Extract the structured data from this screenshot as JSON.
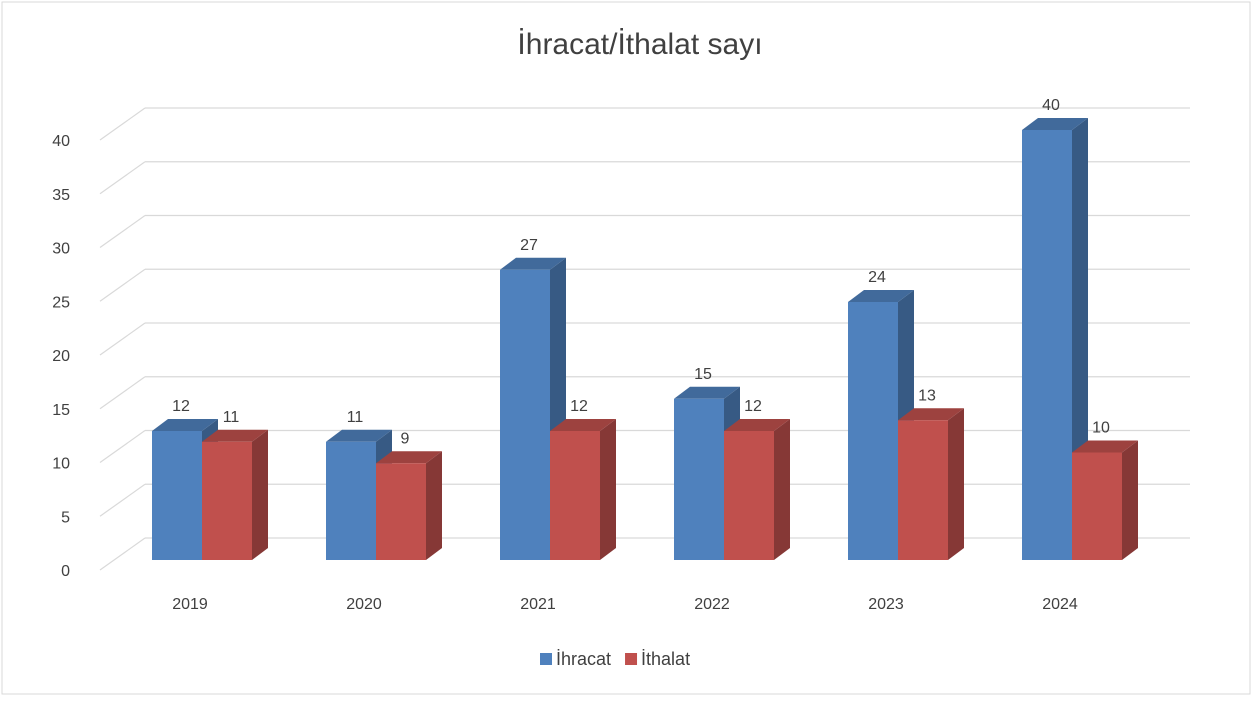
{
  "chart_data": {
    "type": "bar3d",
    "title": "İhracat/İthalat sayı",
    "categories": [
      "2019",
      "2020",
      "2021",
      "2022",
      "2023",
      "2024"
    ],
    "series": [
      {
        "name": "İhracat",
        "color": "#4f81bd",
        "values": [
          12,
          11,
          27,
          15,
          24,
          40
        ]
      },
      {
        "name": "İthalat",
        "color": "#c0504d",
        "values": [
          11,
          9,
          12,
          12,
          13,
          10
        ]
      }
    ],
    "ylim": [
      0,
      40
    ],
    "yticks": [
      0,
      5,
      10,
      15,
      20,
      25,
      30,
      35,
      40
    ],
    "grid": true,
    "legend": "bottom"
  }
}
